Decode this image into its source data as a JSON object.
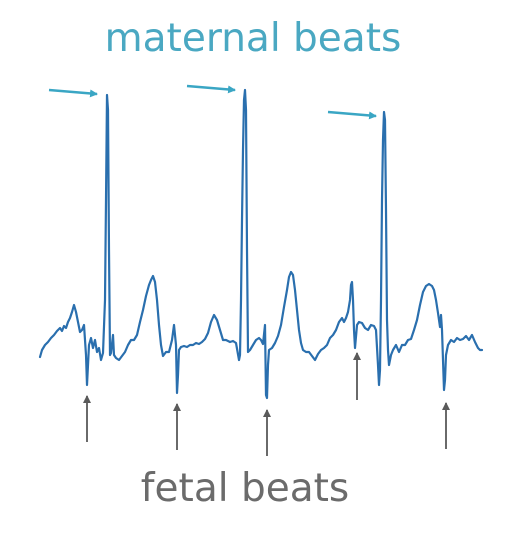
{
  "labels": {
    "maternal": "maternal beats",
    "fetal": "fetal beats"
  },
  "colors": {
    "maternal_label": "#4aa8c2",
    "maternal_arrow": "#3aa6c4",
    "trace": "#2a6fae",
    "fetal_label": "#6b6b6b",
    "fetal_arrow": "#5a5a5a"
  },
  "counts": {
    "maternal_beats_marked": 3,
    "fetal_beats_marked": 5
  }
}
